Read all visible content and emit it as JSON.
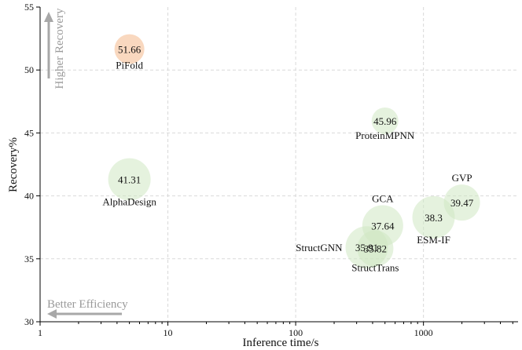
{
  "chart_data": {
    "type": "scatter",
    "title": "",
    "xlabel": "Inference time/s",
    "ylabel": "Recovery%",
    "xscale": "log",
    "xlim": [
      1,
      5500
    ],
    "ylim": [
      30,
      55
    ],
    "x_ticks": [
      1,
      10,
      100,
      1000
    ],
    "x_tick_labels": [
      "1",
      "10",
      "100",
      "1000"
    ],
    "y_ticks": [
      30,
      35,
      40,
      45,
      50,
      55
    ],
    "y_tick_labels": [
      "30",
      "35",
      "40",
      "45",
      "50",
      "55"
    ],
    "grid": true,
    "colors": {
      "highlight": "#f7cba9",
      "normal": "#cfe8c3",
      "arrow": "#a8a8a8"
    },
    "points": [
      {
        "name": "PiFold",
        "x": 5.0,
        "y": 51.66,
        "label": "51.66",
        "highlight": true,
        "size": 19,
        "name_pos": "below"
      },
      {
        "name": "ProteinMPNN",
        "x": 500,
        "y": 45.96,
        "label": "45.96",
        "highlight": false,
        "size": 17,
        "name_pos": "below"
      },
      {
        "name": "AlphaDesign",
        "x": 5.0,
        "y": 41.31,
        "label": "41.31",
        "highlight": false,
        "size": 27,
        "name_pos": "below"
      },
      {
        "name": "GVP",
        "x": 2000,
        "y": 39.47,
        "label": "39.47",
        "highlight": false,
        "size": 23,
        "name_pos": "above"
      },
      {
        "name": "ESM-IF",
        "x": 1200,
        "y": 38.3,
        "label": "38.3",
        "highlight": false,
        "size": 27,
        "name_pos": "below"
      },
      {
        "name": "GCA",
        "x": 480,
        "y": 37.64,
        "label": "37.64",
        "highlight": false,
        "size": 26,
        "name_pos": "above"
      },
      {
        "name": "StructGNN",
        "x": 360,
        "y": 35.91,
        "label": "35.91",
        "highlight": false,
        "size": 27,
        "name_pos": "left"
      },
      {
        "name": "StructTrans",
        "x": 420,
        "y": 35.82,
        "label": "35.82",
        "highlight": false,
        "size": 23,
        "name_pos": "below"
      }
    ],
    "annotations": {
      "higher_recovery": "Higher Recovery",
      "better_efficiency": "Better Efficiency"
    }
  }
}
